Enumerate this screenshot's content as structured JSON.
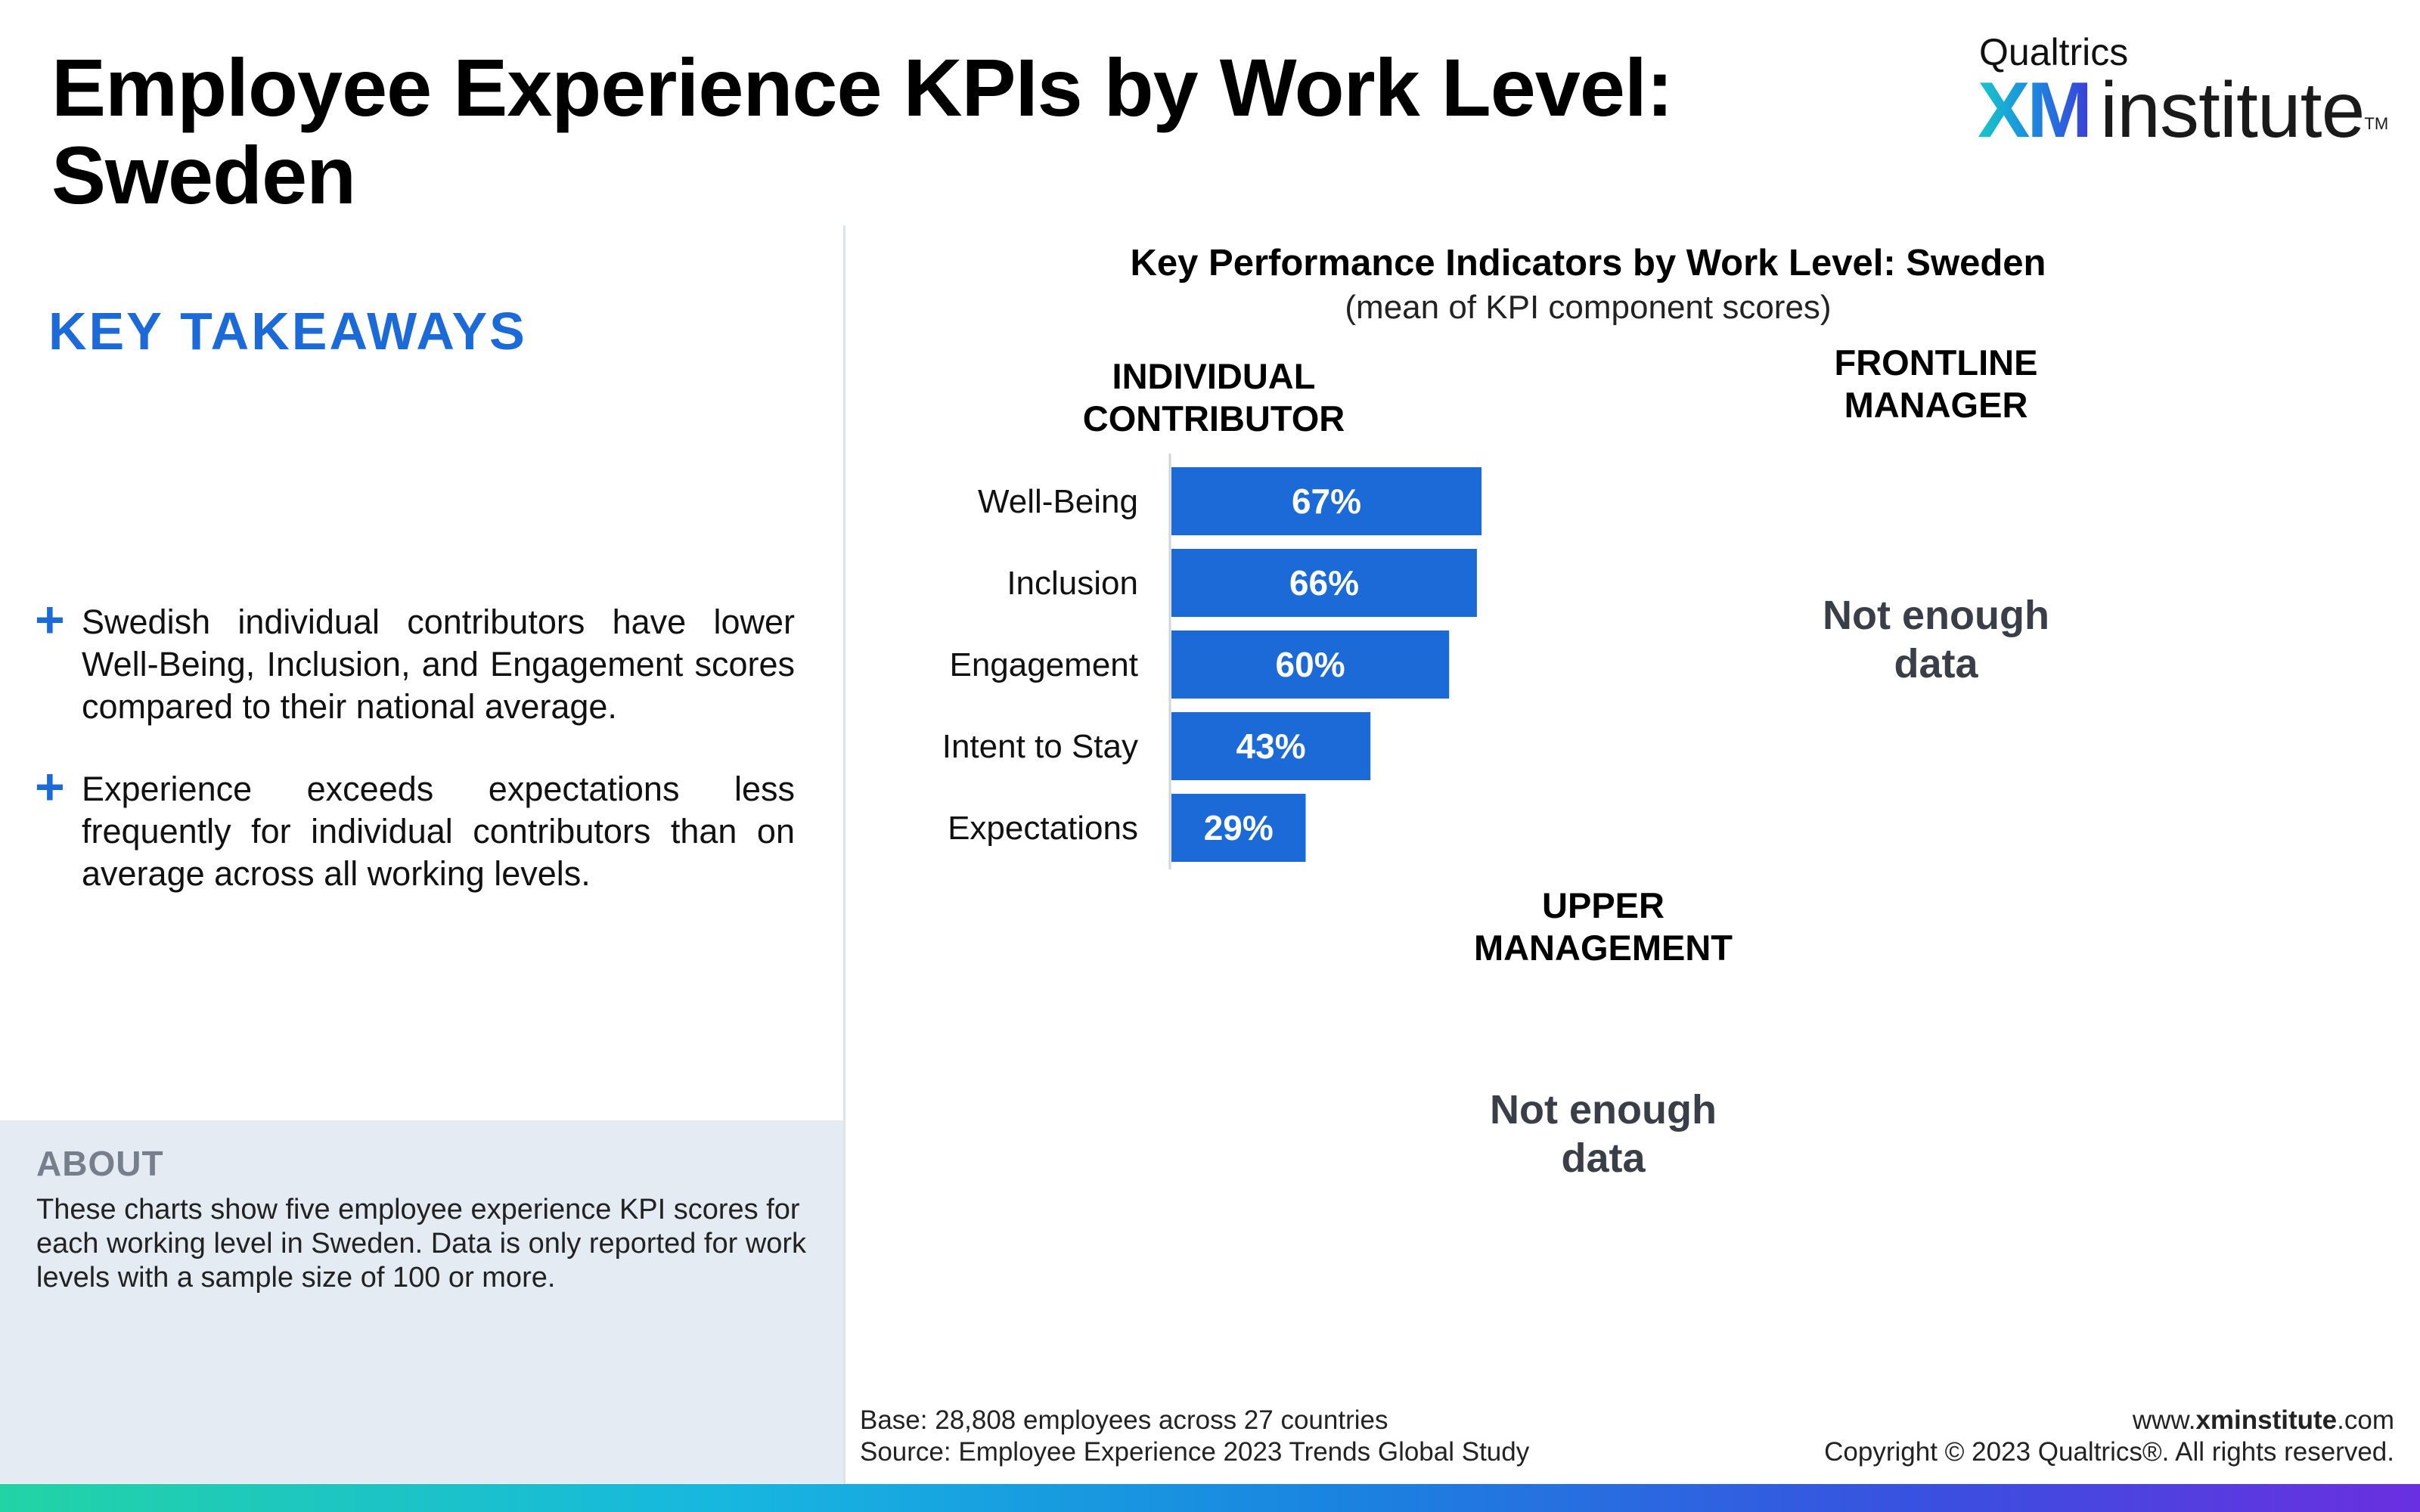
{
  "page": {
    "title_line1": "Employee Experience KPIs by Work Level:",
    "title_line2": "Sweden"
  },
  "logo": {
    "top_text": "Qualtrics",
    "xm_text": "XM",
    "institute_text": "institute",
    "tm": "TM"
  },
  "takeaways": {
    "heading": "KEY TAKEAWAYS",
    "bullet_symbol": "+",
    "items": [
      "Swedish individual contributors have lower Well-Being, Inclusion, and Engagement scores compared to their national average.",
      "Experience exceeds expectations less frequently for individual contributors than on average across all working levels."
    ]
  },
  "about": {
    "heading": "ABOUT",
    "text": "These charts show five employee experience KPI scores for each working level in Sweden. Data is only reported for work levels with a sample size of 100 or more."
  },
  "chart_data": {
    "type": "bar",
    "orientation": "horizontal",
    "title": "Key Performance Indicators by Work Level: Sweden",
    "subtitle": "(mean of KPI component scores)",
    "categories": [
      "Well-Being",
      "Inclusion",
      "Engagement",
      "Intent to Stay",
      "Expectations"
    ],
    "series": [
      {
        "name": "INDIVIDUAL CONTRIBUTOR",
        "values": [
          67,
          66,
          60,
          43,
          29
        ],
        "labels": [
          "67%",
          "66%",
          "60%",
          "43%",
          "29%"
        ]
      }
    ],
    "xlim": [
      0,
      100
    ],
    "grid": false,
    "bar_color": "#1c6ad8",
    "panels": [
      {
        "heading_line1": "INDIVIDUAL",
        "heading_line2": "CONTRIBUTOR",
        "status": "data"
      },
      {
        "heading_line1": "FRONTLINE",
        "heading_line2": "MANAGER",
        "status_line1": "Not enough",
        "status_line2": "data"
      },
      {
        "heading_line1": "UPPER",
        "heading_line2": "MANAGEMENT",
        "status_line1": "Not enough",
        "status_line2": "data"
      }
    ]
  },
  "footer": {
    "base": "Base: 28,808 employees across 27 countries",
    "source": "Source: Employee Experience 2023 Trends Global Study",
    "url_prefix": "www.",
    "url_bold": "xminstitute",
    "url_suffix": ".com",
    "copyright": "Copyright © 2023 Qualtrics®. All rights reserved."
  },
  "colors": {
    "accent": "#1c6ad8",
    "about_bg": "#e4ebf3",
    "no_data_text": "#3a3f47"
  }
}
